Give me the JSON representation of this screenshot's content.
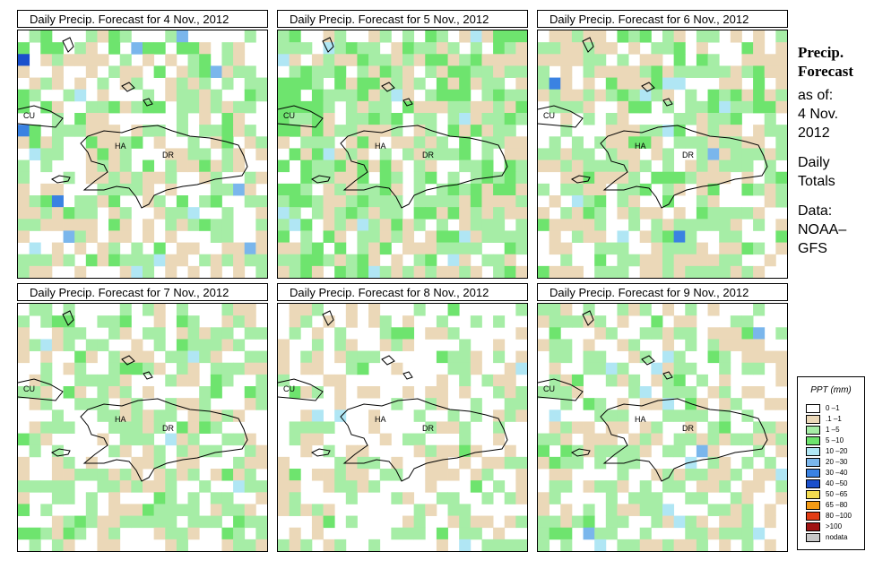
{
  "panels": [
    {
      "title": "Daily Precip. Forecast for  4 Nov., 2012",
      "labels": {
        "cu": "CU",
        "ha": "HA",
        "dr": "DR"
      }
    },
    {
      "title": "Daily Precip. Forecast for  5 Nov., 2012",
      "labels": {
        "cu": "CU",
        "ha": "HA",
        "dr": "DR"
      }
    },
    {
      "title": "Daily Precip. Forecast for  6 Nov., 2012",
      "labels": {
        "cu": "CU",
        "ha": "HA",
        "dr": "DR"
      }
    },
    {
      "title": "Daily Precip. Forecast for  7 Nov., 2012",
      "labels": {
        "cu": "CU",
        "ha": "HA",
        "dr": "DR"
      }
    },
    {
      "title": "Daily Precip. Forecast for  8 Nov., 2012",
      "labels": {
        "cu": "CU",
        "ha": "HA",
        "dr": "DR"
      }
    },
    {
      "title": "Daily Precip. Forecast for  9 Nov., 2012",
      "labels": {
        "cu": "CU",
        "ha": "HA",
        "dr": "DR"
      }
    }
  ],
  "sidebar": {
    "heading1": "Precip.",
    "heading2": "Forecast",
    "asof": "as of:",
    "date1": "4 Nov.",
    "date2": "2012",
    "daily": "Daily",
    "totals": "Totals",
    "data_label": "Data:",
    "source1": "NOAA–",
    "source2": "GFS"
  },
  "legend": {
    "title": "PPT (mm)",
    "items": [
      {
        "label": "0 –1",
        "color": "#ffffff"
      },
      {
        "label": ".1 –1",
        "color": "#ebd8b8"
      },
      {
        "label": "1 –5",
        "color": "#a6eda6"
      },
      {
        "label": "5 –10",
        "color": "#6ee46e"
      },
      {
        "label": "10 –20",
        "color": "#b0e6f4"
      },
      {
        "label": "20 –30",
        "color": "#7ab6ec"
      },
      {
        "label": "30 –40",
        "color": "#3a82e2"
      },
      {
        "label": "40 –50",
        "color": "#1a50cc"
      },
      {
        "label": "50 –65",
        "color": "#f4dc50"
      },
      {
        "label": "65 –80",
        "color": "#f49a14"
      },
      {
        "label": "80 –100",
        "color": "#e23c14"
      },
      {
        "label": ">100",
        "color": "#a01414"
      },
      {
        "label": "nodata",
        "color": "#c8c8c8"
      }
    ]
  }
}
